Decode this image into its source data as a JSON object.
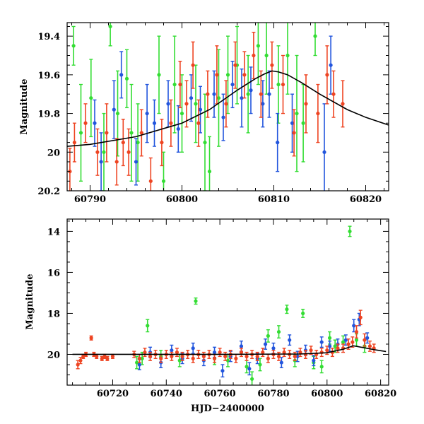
{
  "chart_data": [
    {
      "type": "scatter",
      "panel": "top",
      "xlim": [
        60787.5,
        60822.5
      ],
      "ylim": [
        20.2,
        19.33
      ],
      "y_inverted": true,
      "xlabel": "",
      "ylabel": "Magnitude",
      "x_ticks": [
        60790,
        60800,
        60810,
        60820
      ],
      "y_ticks": [
        19.4,
        19.6,
        19.8,
        20,
        20.2
      ],
      "y_tick_labels": [
        "19.4",
        "19.6",
        "19.8",
        "20",
        "20.2"
      ],
      "model_curve": {
        "name": "",
        "color": "#000000",
        "x": [
          60787.5,
          60790,
          60795,
          60800,
          60803,
          60806,
          60808,
          60809,
          60809.8,
          60810.5,
          60811.5,
          60813,
          60815,
          60818,
          60820,
          60822.5
        ],
        "y": [
          19.97,
          19.96,
          19.92,
          19.85,
          19.78,
          19.68,
          19.62,
          19.595,
          19.58,
          19.585,
          19.6,
          19.64,
          19.7,
          19.78,
          19.82,
          19.86
        ]
      },
      "series": [
        {
          "color": "#33dd33",
          "x": [
            60788.2,
            60789.0,
            60790.1,
            60791.5,
            60792.2,
            60793.0,
            60794.0,
            60794.5,
            60795.2,
            60797.5,
            60798.0,
            60799.2,
            60800.0,
            60801.5,
            60802.5,
            60803.0,
            60804.0,
            60805.0,
            60806.0,
            60807.2,
            60808.3,
            60809.2,
            60810.5,
            60811.5,
            60812.5,
            60813.2,
            60814.5
          ],
          "y": [
            19.45,
            19.9,
            19.72,
            20.0,
            19.35,
            19.8,
            19.62,
            19.9,
            19.95,
            19.6,
            20.15,
            19.65,
            19.8,
            19.75,
            19.95,
            20.1,
            19.72,
            19.6,
            19.55,
            19.7,
            19.45,
            19.5,
            19.65,
            19.5,
            19.8,
            19.85,
            19.4
          ],
          "err": [
            0.1,
            0.25,
            0.2,
            0.2,
            0.1,
            0.22,
            0.15,
            0.25,
            0.2,
            0.2,
            0.15,
            0.25,
            0.2,
            0.2,
            0.25,
            0.18,
            0.25,
            0.2,
            0.2,
            0.2,
            0.2,
            0.2,
            0.2,
            0.2,
            0.3,
            0.2,
            0.1
          ]
        },
        {
          "color": "#2255dd",
          "x": [
            60790.5,
            60791.2,
            60792.6,
            60793.4,
            60795.0,
            60796.2,
            60797.0,
            60798.5,
            60799.6,
            60801.0,
            60802.0,
            60803.5,
            60804.5,
            60805.5,
            60806.5,
            60807.5,
            60808.8,
            60809.5,
            60810.4,
            60812.0,
            60815.5,
            60816.2
          ],
          "y": [
            19.85,
            20.05,
            19.78,
            19.6,
            20.05,
            19.8,
            19.85,
            19.75,
            19.88,
            19.72,
            19.78,
            19.7,
            19.82,
            19.65,
            19.72,
            19.68,
            19.75,
            19.7,
            19.95,
            19.85,
            20.0,
            19.55
          ],
          "err": [
            0.12,
            0.15,
            0.15,
            0.12,
            0.12,
            0.15,
            0.12,
            0.12,
            0.12,
            0.12,
            0.12,
            0.12,
            0.12,
            0.12,
            0.15,
            0.12,
            0.12,
            0.12,
            0.15,
            0.15,
            0.25,
            0.15
          ]
        },
        {
          "color": "#ee4422",
          "x": [
            60787.8,
            60788.3,
            60789.5,
            60790.8,
            60791.8,
            60792.9,
            60793.6,
            60794.2,
            60795.6,
            60796.6,
            60797.8,
            60798.8,
            60799.8,
            60800.5,
            60801.2,
            60801.8,
            60802.8,
            60803.8,
            60804.8,
            60805.8,
            60806.8,
            60807.8,
            60808.6,
            60809.8,
            60811.0,
            60812.2,
            60813.5,
            60814.8,
            60815.8,
            60816.5,
            60817.5
          ],
          "y": [
            20.1,
            19.95,
            19.85,
            20.0,
            19.9,
            20.05,
            19.95,
            20.0,
            19.9,
            20.15,
            19.95,
            19.85,
            19.65,
            19.75,
            19.55,
            19.85,
            19.7,
            19.6,
            19.75,
            19.55,
            19.6,
            19.5,
            19.7,
            19.55,
            19.65,
            19.9,
            19.75,
            19.8,
            19.6,
            19.7,
            19.75
          ],
          "err": [
            0.12,
            0.1,
            0.1,
            0.12,
            0.15,
            0.12,
            0.12,
            0.12,
            0.12,
            0.12,
            0.12,
            0.12,
            0.12,
            0.12,
            0.12,
            0.12,
            0.12,
            0.15,
            0.12,
            0.12,
            0.12,
            0.12,
            0.12,
            0.12,
            0.15,
            0.12,
            0.15,
            0.15,
            0.15,
            0.12,
            0.12
          ]
        }
      ]
    },
    {
      "type": "scatter",
      "panel": "bottom",
      "xlim": [
        60703,
        60823
      ],
      "ylim": [
        21.5,
        13.4
      ],
      "y_inverted": true,
      "xlabel": "HJD−2400000",
      "ylabel": "Magnitude",
      "x_ticks": [
        60720,
        60740,
        60760,
        60780,
        60800,
        60820
      ],
      "y_ticks": [
        14,
        16,
        18,
        20
      ],
      "y_tick_labels": [
        "14",
        "16",
        "18",
        "20"
      ],
      "model_curve": {
        "name": "",
        "color": "#000000",
        "x": [
          60705,
          60730,
          60760,
          60790,
          60800,
          60806,
          60809.8,
          60814,
          60818,
          60822
        ],
        "y": [
          20.0,
          20.0,
          20.0,
          19.98,
          19.92,
          19.75,
          19.58,
          19.68,
          19.78,
          19.86
        ]
      },
      "series": [
        {
          "color": "#33dd33",
          "x": [
            60729,
            60731,
            60733,
            60738,
            60745,
            60751,
            60758,
            60763,
            60770,
            60772,
            60775,
            60778,
            60782,
            60785,
            60788,
            60791,
            60795,
            60798,
            60801,
            60803,
            60806,
            60808.5,
            60811,
            60814
          ],
          "y": [
            20.4,
            20.2,
            18.6,
            20.1,
            20.3,
            17.4,
            20.2,
            20.3,
            20.6,
            21.2,
            20.5,
            19.1,
            18.9,
            17.8,
            20.3,
            18.0,
            20.4,
            20.6,
            19.2,
            19.6,
            19.4,
            14.0,
            19.3,
            19.6
          ],
          "err": [
            0.3,
            0.3,
            0.3,
            0.3,
            0.3,
            0.15,
            0.3,
            0.3,
            0.3,
            0.35,
            0.3,
            0.3,
            0.3,
            0.2,
            0.3,
            0.2,
            0.3,
            0.3,
            0.3,
            0.3,
            0.3,
            0.25,
            0.3,
            0.3
          ]
        },
        {
          "color": "#2255dd",
          "x": [
            60730,
            60734,
            60738,
            60742,
            60746,
            60750,
            60754,
            60758,
            60761,
            60764,
            60768,
            60771,
            60774,
            60777,
            60780,
            60783,
            60786,
            60789,
            60792,
            60795,
            60798,
            60801,
            60804,
            60807,
            60810,
            60812,
            60815
          ],
          "y": [
            20.5,
            19.9,
            20.4,
            19.8,
            20.2,
            19.7,
            20.3,
            19.9,
            20.8,
            20.1,
            19.6,
            20.7,
            20.2,
            19.5,
            19.7,
            20.4,
            19.3,
            20.1,
            19.8,
            20.3,
            19.4,
            19.6,
            19.5,
            19.3,
            18.6,
            18.3,
            19.2
          ],
          "err": [
            0.25,
            0.25,
            0.25,
            0.25,
            0.25,
            0.25,
            0.25,
            0.25,
            0.3,
            0.25,
            0.25,
            0.3,
            0.25,
            0.25,
            0.25,
            0.25,
            0.25,
            0.25,
            0.25,
            0.25,
            0.25,
            0.25,
            0.25,
            0.25,
            0.3,
            0.3,
            0.25
          ]
        },
        {
          "color": "#ee4422",
          "x": [
            60707,
            60708,
            60709,
            60710,
            60712,
            60713,
            60714,
            60716,
            60717,
            60718,
            60720,
            60728,
            60730,
            60732,
            60734,
            60736,
            60738,
            60740,
            60742,
            60744,
            60746,
            60748,
            60750,
            60752,
            60754,
            60756,
            60758,
            60760,
            60762,
            60764,
            60766,
            60768,
            60770,
            60772,
            60774,
            60776,
            60778,
            60780,
            60782,
            60784,
            60786,
            60788,
            60790,
            60792,
            60794,
            60796,
            60798,
            60800,
            60802,
            60804,
            60806,
            60808,
            60809.5,
            60811,
            60812.5,
            60814,
            60816,
            60817.5
          ],
          "y": [
            20.5,
            20.3,
            20.1,
            20.0,
            19.2,
            20.0,
            20.1,
            20.2,
            20.1,
            20.2,
            20.1,
            20.0,
            20.2,
            19.9,
            20.1,
            20.0,
            20.2,
            20.0,
            20.1,
            19.9,
            20.1,
            20.0,
            20.2,
            20.0,
            20.1,
            20.0,
            20.2,
            19.9,
            20.1,
            20.0,
            20.2,
            19.9,
            20.1,
            20.0,
            20.1,
            19.9,
            20.2,
            20.0,
            20.1,
            19.9,
            20.0,
            20.1,
            19.9,
            20.0,
            19.8,
            20.0,
            19.9,
            19.8,
            19.9,
            19.7,
            19.7,
            19.5,
            19.4,
            18.9,
            18.2,
            19.3,
            19.6,
            19.7
          ],
          "err": [
            0.2,
            0.15,
            0.1,
            0.1,
            0.1,
            0.1,
            0.1,
            0.1,
            0.1,
            0.1,
            0.1,
            0.15,
            0.2,
            0.2,
            0.2,
            0.2,
            0.2,
            0.2,
            0.2,
            0.2,
            0.2,
            0.2,
            0.2,
            0.2,
            0.2,
            0.2,
            0.2,
            0.2,
            0.2,
            0.2,
            0.2,
            0.2,
            0.2,
            0.2,
            0.2,
            0.2,
            0.2,
            0.2,
            0.2,
            0.2,
            0.2,
            0.2,
            0.2,
            0.2,
            0.2,
            0.2,
            0.2,
            0.2,
            0.2,
            0.2,
            0.2,
            0.25,
            0.25,
            0.3,
            0.35,
            0.3,
            0.25,
            0.2
          ]
        }
      ]
    }
  ]
}
